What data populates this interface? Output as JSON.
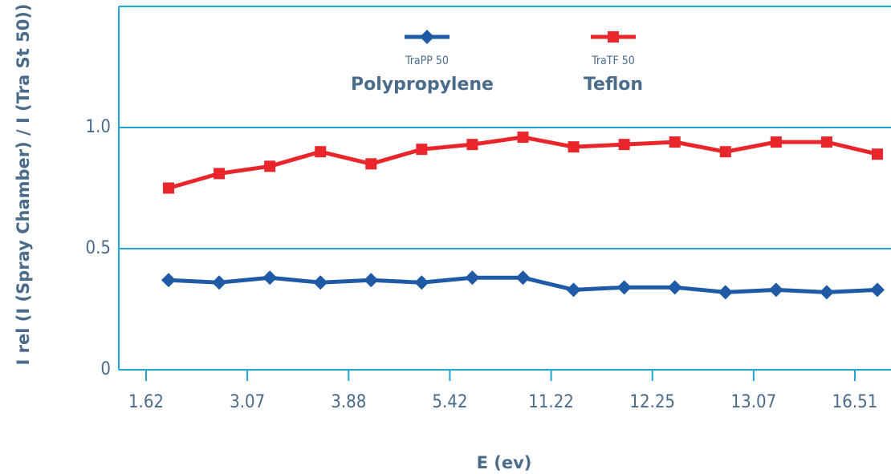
{
  "chart_data": {
    "type": "line",
    "x_label": "E (ev)",
    "y_label": "I rel (I (Spray Chamber) / I (Tra St 50))",
    "categories": [
      "1.62",
      null,
      "3.07",
      null,
      "3.88",
      null,
      "5.42",
      null,
      "11.22",
      null,
      "12.25",
      null,
      "13.07",
      null,
      "16.51"
    ],
    "series": [
      {
        "name": "TraPP 50",
        "description": "Polypropylene",
        "color": "#1f5aa6",
        "marker": "diamond",
        "values": [
          0.37,
          0.36,
          0.38,
          0.36,
          0.37,
          0.36,
          0.38,
          0.38,
          0.33,
          0.34,
          0.34,
          0.32,
          0.33,
          0.32,
          0.33
        ]
      },
      {
        "name": "TraTF 50",
        "description": "Teflon",
        "color": "#e8262b",
        "marker": "square",
        "values": [
          0.75,
          0.81,
          0.84,
          0.9,
          0.85,
          0.91,
          0.93,
          0.96,
          0.92,
          0.93,
          0.94,
          0.9,
          0.94,
          0.94,
          0.89
        ]
      }
    ],
    "ylim": [
      0,
      1.5
    ],
    "yticks": [
      0,
      0.5,
      {
        "value": 1,
        "label": "1.0"
      }
    ],
    "grid": true,
    "axis_color": "#1ba6d6"
  }
}
